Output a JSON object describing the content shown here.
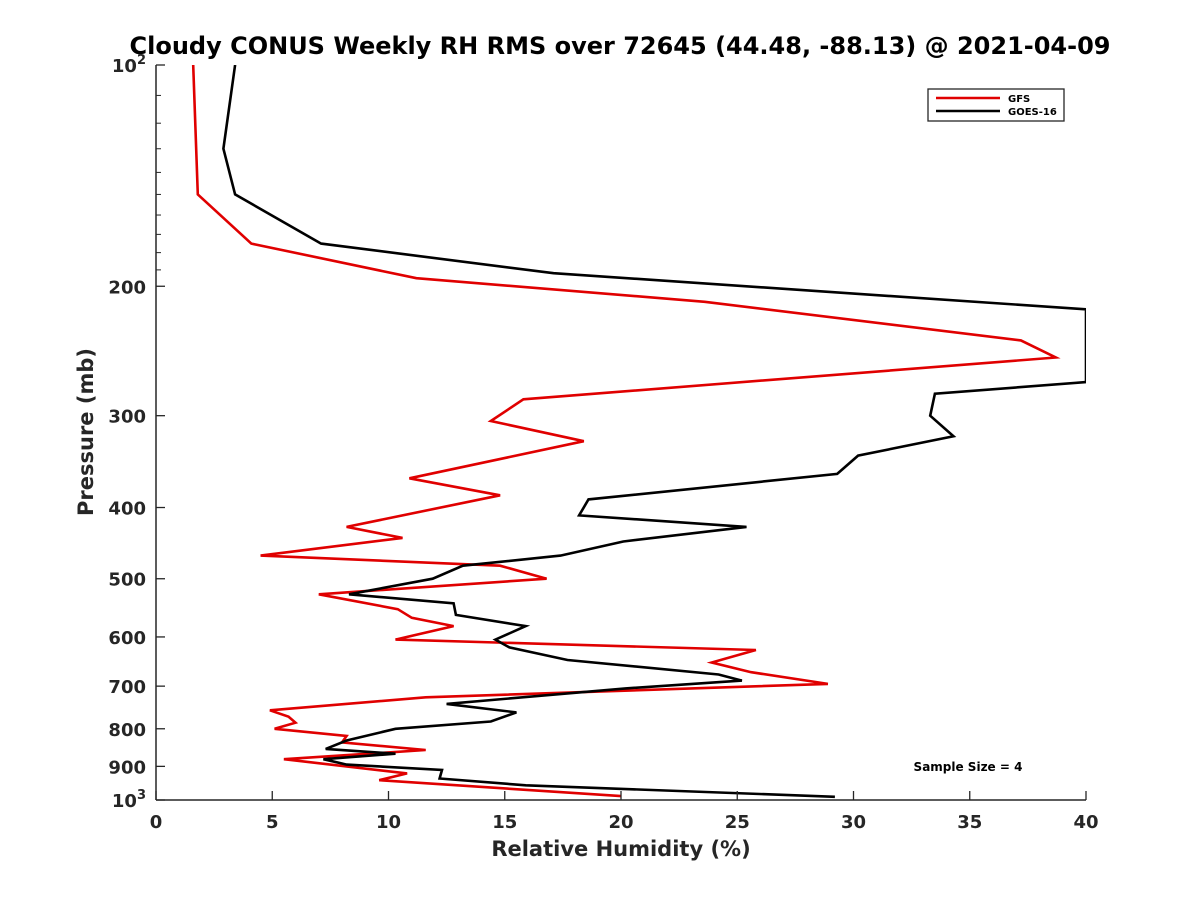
{
  "chart_data": {
    "type": "line",
    "title": "Cloudy CONUS Weekly RH RMS over 72645 (44.48, -88.13) @ 2021-04-09",
    "xlabel": "Relative Humidity (%)",
    "ylabel": "Pressure (mb)",
    "xlim": [
      0,
      40
    ],
    "ylim": [
      1000,
      100
    ],
    "yscale": "log",
    "y_reversed": true,
    "x_ticks": [
      "0",
      "5",
      "10",
      "15",
      "20",
      "25",
      "30",
      "35",
      "40"
    ],
    "y_ticks": [
      {
        "value": 100,
        "base": "10",
        "exp": "2"
      },
      {
        "value": 200,
        "label": "200"
      },
      {
        "value": 300,
        "label": "300"
      },
      {
        "value": 400,
        "label": "400"
      },
      {
        "value": 500,
        "label": "500"
      },
      {
        "value": 600,
        "label": "600"
      },
      {
        "value": 700,
        "label": "700"
      },
      {
        "value": 800,
        "label": "800"
      },
      {
        "value": 900,
        "label": "900"
      },
      {
        "value": 1000,
        "base": "10",
        "exp": "3"
      }
    ],
    "grid": false,
    "legend_position": "top-right",
    "annotation": "Sample Size = 4",
    "series": [
      {
        "name": "GFS",
        "color": "#e00000",
        "points": [
          [
            1.6,
            100
          ],
          [
            1.8,
            150
          ],
          [
            4.1,
            175
          ],
          [
            11.2,
            195
          ],
          [
            23.6,
            210
          ],
          [
            37.2,
            237
          ],
          [
            38.7,
            250
          ],
          [
            15.8,
            285
          ],
          [
            14.4,
            305
          ],
          [
            18.4,
            325
          ],
          [
            10.9,
            365
          ],
          [
            14.8,
            385
          ],
          [
            8.2,
            425
          ],
          [
            10.6,
            440
          ],
          [
            4.5,
            465
          ],
          [
            14.8,
            480
          ],
          [
            16.8,
            500
          ],
          [
            7.0,
            525
          ],
          [
            10.4,
            550
          ],
          [
            11.0,
            565
          ],
          [
            12.8,
            580
          ],
          [
            10.3,
            605
          ],
          [
            25.8,
            625
          ],
          [
            23.9,
            650
          ],
          [
            25.6,
            670
          ],
          [
            28.9,
            695
          ],
          [
            11.6,
            725
          ],
          [
            4.9,
            755
          ],
          [
            5.7,
            770
          ],
          [
            6.0,
            785
          ],
          [
            5.1,
            800
          ],
          [
            8.2,
            818
          ],
          [
            8.0,
            835
          ],
          [
            11.6,
            855
          ],
          [
            5.5,
            880
          ],
          [
            10.8,
            920
          ],
          [
            9.6,
            940
          ],
          [
            20.0,
            988
          ]
        ]
      },
      {
        "name": "GOES-16",
        "color": "#000000",
        "points": [
          [
            3.4,
            100
          ],
          [
            2.9,
            130
          ],
          [
            3.4,
            150
          ],
          [
            7.1,
            175
          ],
          [
            17.1,
            192
          ],
          [
            40.0,
            215
          ],
          [
            40.0,
            270
          ],
          [
            33.5,
            280
          ],
          [
            33.3,
            300
          ],
          [
            34.3,
            320
          ],
          [
            30.2,
            340
          ],
          [
            29.3,
            360
          ],
          [
            18.6,
            390
          ],
          [
            18.2,
            410
          ],
          [
            25.4,
            425
          ],
          [
            20.1,
            445
          ],
          [
            17.4,
            465
          ],
          [
            13.2,
            480
          ],
          [
            11.9,
            500
          ],
          [
            8.3,
            525
          ],
          [
            12.8,
            540
          ],
          [
            12.9,
            560
          ],
          [
            15.9,
            580
          ],
          [
            14.6,
            605
          ],
          [
            15.2,
            620
          ],
          [
            17.7,
            645
          ],
          [
            24.2,
            675
          ],
          [
            25.2,
            688
          ],
          [
            20.2,
            705
          ],
          [
            12.5,
            740
          ],
          [
            15.5,
            760
          ],
          [
            14.4,
            782
          ],
          [
            10.3,
            800
          ],
          [
            8.2,
            830
          ],
          [
            7.3,
            852
          ],
          [
            10.3,
            865
          ],
          [
            7.2,
            880
          ],
          [
            8.2,
            895
          ],
          [
            12.3,
            910
          ],
          [
            12.2,
            935
          ],
          [
            15.9,
            955
          ],
          [
            29.2,
            990
          ]
        ]
      }
    ]
  }
}
